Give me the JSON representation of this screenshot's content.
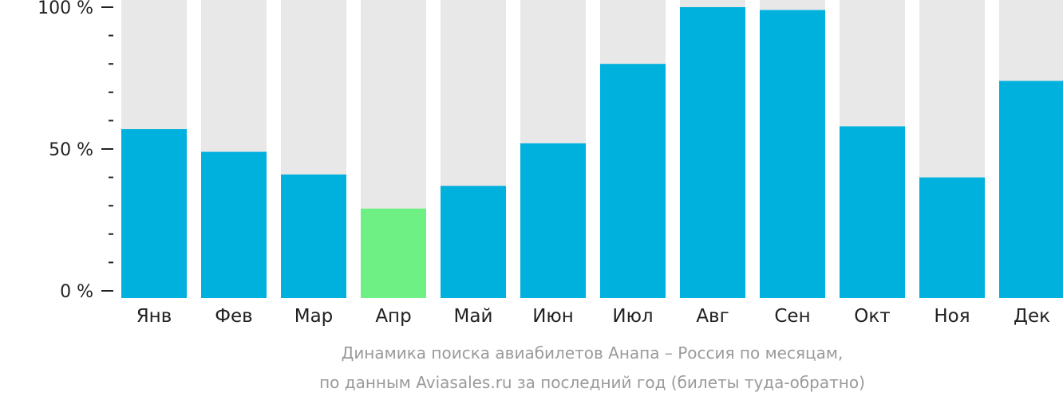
{
  "chart_data": {
    "type": "bar",
    "categories": [
      "Янв",
      "Фев",
      "Мар",
      "Апр",
      "Май",
      "Июн",
      "Июл",
      "Авг",
      "Сен",
      "Окт",
      "Ноя",
      "Дек"
    ],
    "values": [
      57,
      49,
      41,
      29,
      37,
      52,
      80,
      100,
      99,
      58,
      40,
      74
    ],
    "highlighted_category": "Апр",
    "ylim": [
      0,
      100
    ],
    "yticks": [
      {
        "value": 0,
        "label": "0 %"
      },
      {
        "value": 50,
        "label": "50 %"
      },
      {
        "value": 100,
        "label": "100 %"
      }
    ],
    "minor_tick_step": 10,
    "title": "Динамика поиска авиабилетов Анапа – Россия по месяцам,",
    "subtitle": "по данным Aviasales.ru за последний год (билеты туда-обратно)",
    "xlabel": "",
    "ylabel": "",
    "grid": false,
    "legend": "none",
    "colors": {
      "bar": "#00b0dd",
      "highlight": "#6ef084",
      "track": "#e8e8e8",
      "axis": "#222222",
      "caption": "#9a9a9a"
    }
  }
}
